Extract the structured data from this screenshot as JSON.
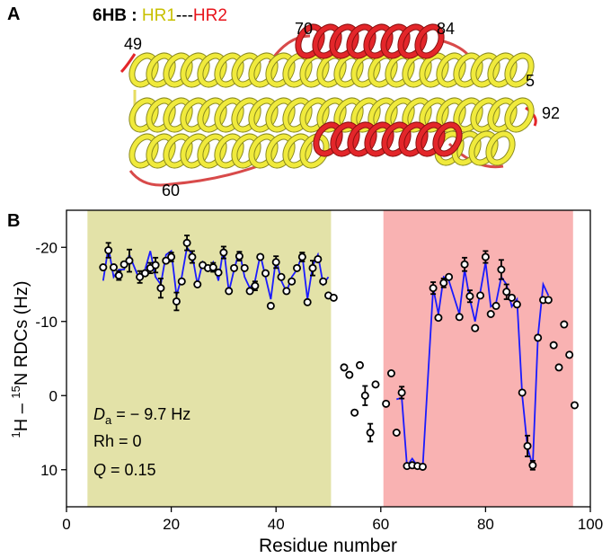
{
  "panel_a": {
    "label": "A",
    "title": "6HB :",
    "hr1": "HR1",
    "separator": "---",
    "hr2": "HR2",
    "residue_labels": [
      "49",
      "70",
      "84",
      "5",
      "92",
      "60"
    ]
  },
  "chart_data": {
    "type": "scatter",
    "panel_label": "B",
    "xlabel": "Residue number",
    "ylabel": [
      "1",
      "H – ",
      "15",
      "N RDCs (Hz)"
    ],
    "xlim": [
      0,
      100
    ],
    "xticks": [
      0,
      20,
      40,
      60,
      80,
      100
    ],
    "ylim": [
      15,
      -25
    ],
    "yticks": [
      -20,
      -10,
      0,
      10
    ],
    "regions": [
      {
        "start": 4,
        "end": 50.5,
        "color": "#e3e2a8"
      },
      {
        "start": 60.5,
        "end": 96.7,
        "color": "#f9b2b2"
      }
    ],
    "x": [
      7,
      8,
      9,
      10,
      11,
      12,
      14,
      15,
      16,
      17,
      18,
      19,
      20,
      21,
      22,
      23,
      24,
      25,
      26,
      27,
      28,
      29,
      30,
      31,
      32,
      33,
      34,
      35,
      36,
      37,
      38,
      39,
      40,
      41,
      42,
      43,
      44,
      45,
      46,
      47,
      48,
      49,
      50,
      51,
      53,
      54,
      55,
      56,
      57,
      58,
      59,
      61,
      62,
      63,
      64,
      65,
      66,
      67,
      68,
      70,
      71,
      72,
      73,
      75,
      76,
      77,
      78,
      79,
      80,
      81,
      82,
      83,
      84,
      85,
      86,
      87,
      88,
      89,
      90,
      91,
      92,
      93,
      94,
      95,
      96,
      97
    ],
    "values": [
      -17.3,
      -19.6,
      -17.3,
      -16.2,
      -17.7,
      -18.2,
      -16.0,
      -16.5,
      -17.2,
      -17.6,
      -14.5,
      -18.2,
      -18.7,
      -12.7,
      -15.4,
      -20.6,
      -18.7,
      -15.0,
      -17.6,
      -17.2,
      -17.3,
      -16.6,
      -19.3,
      -14.1,
      -17.2,
      -18.8,
      -17.2,
      -14.1,
      -14.8,
      -18.7,
      -16.5,
      -12.1,
      -18.0,
      -16.0,
      -14.1,
      -15.4,
      -17.2,
      -18.7,
      -12.6,
      -17.2,
      -18.4,
      -15.4,
      -13.5,
      -13.2,
      -3.8,
      -2.8,
      2.3,
      -4.1,
      0,
      5.0,
      -1.5,
      1.1,
      -3.0,
      5.0,
      -0.4,
      9.5,
      9.4,
      9.5,
      9.6,
      -14.5,
      -10.5,
      -15.2,
      -16.0,
      -10.6,
      -17.7,
      -13.4,
      -9.1,
      -13.5,
      -18.7,
      -11.0,
      -12.1,
      -17.0,
      -14.0,
      -13.2,
      -12.3,
      -0.4,
      6.8,
      9.4,
      -7.8,
      -12.9,
      -12.9,
      -6.8,
      -3.8,
      -9.6,
      -5.5,
      1.3
    ],
    "errors": [
      null,
      1.0,
      null,
      0.6,
      null,
      1.5,
      0.8,
      null,
      0.7,
      1.0,
      1.3,
      null,
      0.6,
      1.2,
      null,
      1.0,
      0.8,
      null,
      null,
      null,
      0.6,
      null,
      0.8,
      null,
      null,
      0.6,
      null,
      null,
      0.6,
      null,
      null,
      null,
      0.8,
      null,
      null,
      null,
      null,
      0.6,
      null,
      1.0,
      null,
      null,
      null,
      null,
      null,
      null,
      null,
      null,
      1.3,
      1.2,
      null,
      null,
      null,
      null,
      0.8,
      null,
      null,
      null,
      null,
      0.8,
      null,
      0.6,
      null,
      null,
      0.9,
      0.8,
      null,
      null,
      0.8,
      null,
      null,
      1.3,
      1.0,
      null,
      null,
      null,
      1.4,
      0.6,
      null,
      null,
      null,
      null,
      null,
      null,
      null,
      null
    ],
    "marker_color": "#000000",
    "line_values": [
      -15.5,
      -20,
      -16,
      -17,
      -17,
      -19,
      -15.5,
      -17,
      -19.5,
      -16,
      -15,
      -19,
      -19.5,
      -13.5,
      -16,
      -20,
      -19,
      -15,
      -18,
      -17,
      -18,
      -15.5,
      -20,
      -14,
      -17,
      -19.5,
      -16,
      -14.5,
      -15.5,
      -19,
      -16,
      -13,
      -18.5,
      -15.5,
      -14,
      -16,
      -17,
      -19,
      -13,
      -17.5,
      -19,
      -15,
      -16,
      null,
      null,
      null,
      null,
      null,
      null,
      null,
      null,
      null,
      null,
      0.5,
      0.3,
      9.5,
      8.5,
      9.5,
      9.7,
      -14.5,
      -11,
      -16,
      -15.5,
      -11,
      -17,
      -13,
      -10,
      -14,
      -18,
      -12,
      -12.5,
      -16,
      -15,
      -12,
      -13,
      0,
      7,
      9.5,
      -8,
      -15,
      -13.5,
      null,
      null,
      null,
      null,
      null
    ],
    "line_color": "#1a1aff",
    "annotations": [
      [
        "D",
        "a",
        " = − 9.7 Hz"
      ],
      [
        "Rh = 0"
      ],
      [
        "Q",
        " = 0.15"
      ]
    ]
  }
}
